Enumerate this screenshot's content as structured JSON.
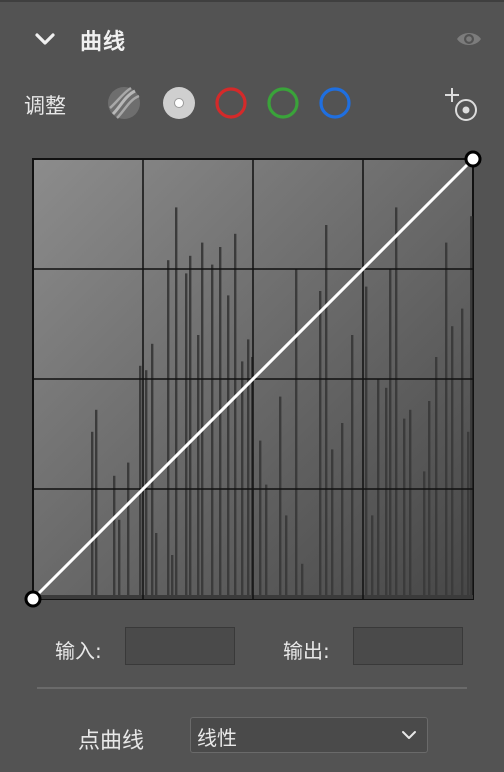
{
  "panel": {
    "title": "曲线",
    "colors": {
      "background": "#535353",
      "graph_bg_light": "#8a8a8a",
      "graph_bg_dark": "#4a4a4a",
      "histogram": "#3a3a3a",
      "curve": "#ffffff",
      "red_channel": "#d42a2a",
      "green_channel": "#3aa33a",
      "blue_channel": "#1f6fe0"
    }
  },
  "header": {
    "collapse_icon": "chevron-down-icon",
    "visibility_icon": "eye-icon"
  },
  "adjust": {
    "label": "调整",
    "channels": [
      {
        "name": "auto",
        "icon": "auto-curves-icon"
      },
      {
        "name": "rgb",
        "icon": "rgb-channel-icon",
        "selected": true
      },
      {
        "name": "red",
        "icon": "red-channel-icon"
      },
      {
        "name": "green",
        "icon": "green-channel-icon"
      },
      {
        "name": "blue",
        "icon": "blue-channel-icon"
      }
    ],
    "target_tool_icon": "targeted-adjustment-icon"
  },
  "curve": {
    "grid_divisions": 4,
    "points": [
      [
        0,
        0
      ],
      [
        255,
        255
      ]
    ]
  },
  "io": {
    "input_label": "输入:",
    "input_value": "",
    "output_label": "输出:",
    "output_value": ""
  },
  "curve_type": {
    "label": "点曲线",
    "selected": "线性"
  }
}
